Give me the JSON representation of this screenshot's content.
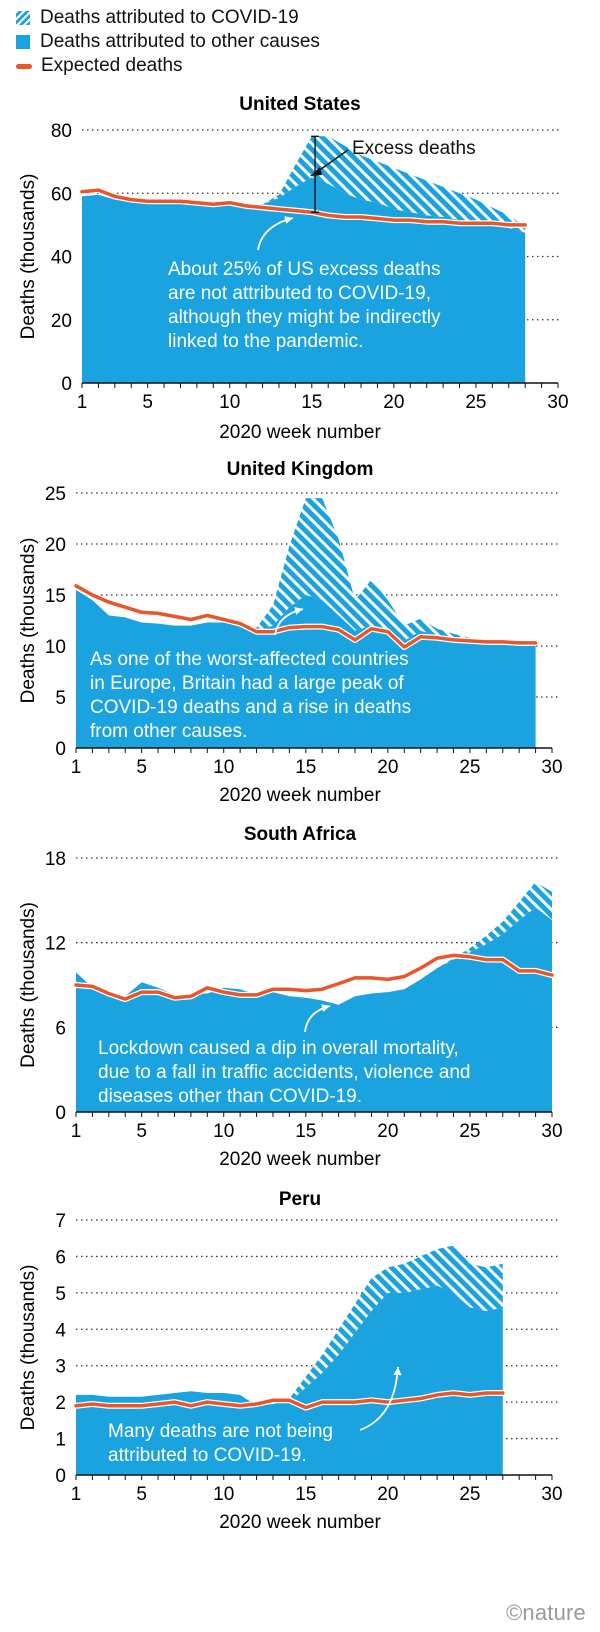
{
  "legend": [
    {
      "label": "Deaths attributed to COVID-19",
      "swatch": "hatched"
    },
    {
      "label": "Deaths attributed to other causes",
      "swatch": "solid"
    },
    {
      "label": "Expected deaths",
      "swatch": "line"
    }
  ],
  "colors": {
    "covid": "#1aa3df",
    "other": "#1aa3df",
    "expected": "#e8562a",
    "hatch_bg": "#ffffff"
  },
  "credit": "©nature",
  "chart_data": [
    {
      "type": "area",
      "title": "United States",
      "xlabel": "2020 week number",
      "ylabel": "Deaths (thousands)",
      "xlim": [
        1,
        30
      ],
      "ylim": [
        0,
        80
      ],
      "yticks": [
        0,
        20,
        40,
        60,
        80
      ],
      "xticks": [
        1,
        5,
        10,
        15,
        20,
        25,
        30
      ],
      "x": [
        1,
        2,
        3,
        4,
        5,
        6,
        7,
        8,
        9,
        10,
        11,
        12,
        13,
        14,
        15,
        16,
        17,
        18,
        19,
        20,
        21,
        22,
        23,
        24,
        25,
        26,
        27,
        28
      ],
      "series": [
        {
          "name": "Deaths attributed to other causes",
          "values": [
            59,
            59.5,
            58,
            57.2,
            57,
            57,
            57.5,
            57.5,
            57.5,
            57.5,
            56.5,
            56.5,
            58.5,
            62,
            65,
            63,
            60,
            58,
            57,
            55,
            54,
            53,
            52.5,
            51.5,
            51,
            50,
            49,
            47.5
          ]
        },
        {
          "name": "Deaths attributed to COVID-19",
          "values": [
            0,
            0,
            0,
            0,
            0,
            0,
            0,
            0,
            0,
            0,
            0,
            0,
            1,
            7,
            13,
            15,
            15,
            14,
            13,
            13,
            12,
            11,
            9.5,
            8.5,
            7,
            5.5,
            4,
            2
          ]
        },
        {
          "name": "Expected deaths",
          "values": [
            60.5,
            61,
            59,
            58,
            57.5,
            57.5,
            57.5,
            57,
            56.5,
            57,
            56,
            55.5,
            55,
            54.5,
            54,
            53,
            52.5,
            52.5,
            52,
            51.5,
            51.5,
            51,
            51,
            50.5,
            50.5,
            50.5,
            50,
            50
          ]
        }
      ],
      "annotations": [
        {
          "kind": "bracket",
          "text": "Excess deaths"
        },
        {
          "kind": "callout",
          "lines": [
            "About 25% of US excess deaths",
            "are not attributed to COVID-19,",
            "although they might be indirectly",
            "linked to the pandemic."
          ]
        }
      ]
    },
    {
      "type": "area",
      "title": "United Kingdom",
      "xlabel": "2020 week number",
      "ylabel": "Deaths (thousands)",
      "xlim": [
        1,
        30
      ],
      "ylim": [
        0,
        25
      ],
      "yticks": [
        0,
        5,
        10,
        15,
        20,
        25
      ],
      "xticks": [
        1,
        5,
        10,
        15,
        20,
        25,
        30
      ],
      "x": [
        1,
        2,
        3,
        4,
        5,
        6,
        7,
        8,
        9,
        10,
        11,
        12,
        13,
        14,
        15,
        16,
        17,
        18,
        19,
        20,
        21,
        22,
        23,
        24,
        25,
        26,
        27,
        28,
        29
      ],
      "series": [
        {
          "name": "Deaths attributed to other causes",
          "values": [
            15.5,
            14.5,
            13,
            12.8,
            12.3,
            12.2,
            12,
            12,
            12.3,
            12.3,
            12,
            11.5,
            12,
            13.8,
            15,
            14.5,
            13,
            11.5,
            12,
            11.5,
            10.5,
            11.5,
            11,
            10.8,
            10.5,
            10.4,
            10.2,
            10,
            10
          ]
        },
        {
          "name": "Deaths attributed to COVID-19",
          "values": [
            0,
            0,
            0,
            0,
            0,
            0,
            0,
            0,
            0,
            0,
            0,
            0.3,
            2,
            6,
            9.5,
            10,
            7.5,
            3,
            4.5,
            3,
            1.5,
            1.2,
            0.7,
            0.4,
            0.3,
            0.2,
            0.2,
            0.3,
            0.3
          ]
        },
        {
          "name": "Expected deaths",
          "values": [
            15.9,
            15,
            14.3,
            13.8,
            13.3,
            13.2,
            12.9,
            12.6,
            13,
            12.6,
            12.2,
            11.4,
            11.4,
            11.8,
            11.9,
            11.9,
            11.6,
            10.6,
            11.7,
            11.4,
            9.9,
            10.9,
            10.8,
            10.6,
            10.5,
            10.4,
            10.4,
            10.3,
            10.3
          ]
        }
      ],
      "annotations": [
        {
          "kind": "callout",
          "lines": [
            "As one of the worst-affected countries",
            "in Europe, Britain had a large peak of",
            "COVID-19 deaths and a rise in deaths",
            "from other causes."
          ]
        }
      ]
    },
    {
      "type": "area",
      "title": "South Africa",
      "xlabel": "2020 week number",
      "ylabel": "Deaths (thousands)",
      "xlim": [
        1,
        30
      ],
      "ylim": [
        0,
        18
      ],
      "yticks": [
        0,
        6,
        12,
        18
      ],
      "xticks": [
        1,
        5,
        10,
        15,
        20,
        25,
        30
      ],
      "x": [
        1,
        2,
        3,
        4,
        5,
        6,
        7,
        8,
        9,
        10,
        11,
        12,
        13,
        14,
        15,
        16,
        17,
        18,
        19,
        20,
        21,
        22,
        23,
        24,
        25,
        26,
        27,
        28,
        29,
        30
      ],
      "series": [
        {
          "name": "Deaths attributed to other causes",
          "values": [
            9.9,
            8.8,
            8.2,
            8.2,
            9.2,
            8.8,
            8.3,
            8.4,
            8.4,
            8.8,
            8.7,
            8.3,
            8.5,
            8.2,
            8.1,
            7.9,
            7.6,
            8.2,
            8.4,
            8.5,
            8.7,
            9.4,
            10.2,
            10.8,
            11.3,
            11.9,
            12.6,
            13.6,
            14.5,
            13.6
          ]
        },
        {
          "name": "Deaths attributed to COVID-19",
          "values": [
            0,
            0,
            0,
            0,
            0,
            0,
            0,
            0,
            0,
            0,
            0,
            0,
            0,
            0,
            0,
            0,
            0,
            0,
            0,
            0,
            0,
            0,
            0,
            0.1,
            0.3,
            0.6,
            0.9,
            1.3,
            1.8,
            2
          ]
        },
        {
          "name": "Expected deaths",
          "values": [
            9,
            8.9,
            8.4,
            8,
            8.5,
            8.5,
            8.1,
            8.2,
            8.8,
            8.5,
            8.3,
            8.3,
            8.7,
            8.7,
            8.6,
            8.7,
            9.1,
            9.5,
            9.5,
            9.4,
            9.6,
            10.2,
            10.9,
            11.1,
            11,
            10.8,
            10.8,
            10,
            10,
            9.7
          ]
        }
      ],
      "annotations": [
        {
          "kind": "callout",
          "lines": [
            "Lockdown caused a dip in overall mortality,",
            "due to a fall in traffic accidents, violence and",
            "diseases other than COVID-19."
          ]
        }
      ]
    },
    {
      "type": "area",
      "title": "Peru",
      "xlabel": "2020 week number",
      "ylabel": "Deaths (thousands)",
      "xlim": [
        1,
        30
      ],
      "ylim": [
        0,
        7
      ],
      "yticks": [
        0,
        1,
        2,
        3,
        4,
        5,
        6,
        7
      ],
      "xticks": [
        1,
        5,
        10,
        15,
        20,
        25,
        30
      ],
      "x": [
        1,
        2,
        3,
        4,
        5,
        6,
        7,
        8,
        9,
        10,
        11,
        12,
        13,
        14,
        15,
        16,
        17,
        18,
        19,
        20,
        21,
        22,
        23,
        24,
        25,
        26,
        27
      ],
      "series": [
        {
          "name": "Deaths attributed to other causes",
          "values": [
            2.2,
            2.2,
            2.15,
            2.15,
            2.15,
            2.2,
            2.25,
            2.3,
            2.25,
            2.25,
            2.2,
            1.9,
            1.95,
            2,
            2.4,
            2.8,
            3.3,
            3.9,
            4.5,
            5,
            5,
            5.1,
            5.2,
            5,
            4.6,
            4.5,
            4.6
          ]
        },
        {
          "name": "Deaths attributed to COVID-19",
          "values": [
            0,
            0,
            0,
            0,
            0,
            0,
            0,
            0,
            0,
            0,
            0,
            0,
            0,
            0.1,
            0.3,
            0.5,
            0.7,
            0.8,
            0.9,
            0.7,
            0.8,
            0.9,
            1,
            1.3,
            1.2,
            1.2,
            1.2
          ]
        },
        {
          "name": "Expected deaths",
          "values": [
            1.9,
            1.95,
            1.9,
            1.9,
            1.9,
            1.95,
            2,
            1.9,
            2,
            1.95,
            1.9,
            1.95,
            2.05,
            2.05,
            1.85,
            2,
            2,
            2,
            2.05,
            2,
            2.05,
            2.1,
            2.2,
            2.25,
            2.2,
            2.25,
            2.25
          ]
        }
      ],
      "annotations": [
        {
          "kind": "callout",
          "lines": [
            "Many deaths are not being",
            "attributed to COVID-19."
          ]
        }
      ]
    }
  ]
}
